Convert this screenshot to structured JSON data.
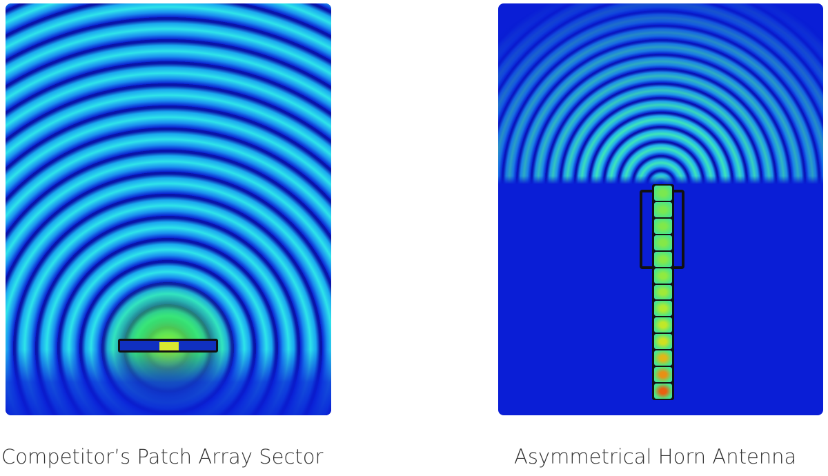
{
  "panels": [
    {
      "caption": "Competitor’s Patch Array Sector"
    },
    {
      "caption": "Asymmetrical Horn Antenna"
    }
  ],
  "colors": {
    "field_low": "#0a1ed6",
    "field_mid": "#2ee4ea",
    "field_high": "#e04010"
  }
}
